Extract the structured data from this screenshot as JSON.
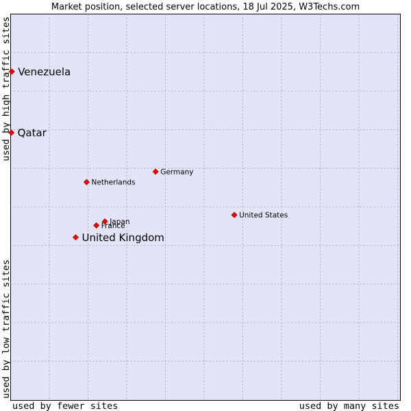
{
  "chart_data": {
    "type": "scatter",
    "title": "Market position, selected server locations, 18 Jul 2025, W3Techs.com",
    "xlabel_left": "used by fewer sites",
    "xlabel_right": "used by many sites",
    "ylabel_bottom": "used by low traffic sites",
    "ylabel_top": "used by high traffic sites",
    "xlim": [
      0,
      100
    ],
    "ylim": [
      0,
      100
    ],
    "grid": true,
    "colors": {
      "plot_bg": "#e4e4f8",
      "point": "#ee0000",
      "point_edge": "#aa0000",
      "frame": "#000000"
    },
    "points": [
      {
        "label": "Venezuela",
        "x": 0.3,
        "y": 85.1,
        "size": "large"
      },
      {
        "label": "Qatar",
        "x": 0.2,
        "y": 69.3,
        "size": "large"
      },
      {
        "label": "Germany",
        "x": 37.2,
        "y": 59.2,
        "size": "small"
      },
      {
        "label": "Netherlands",
        "x": 19.5,
        "y": 56.5,
        "size": "small"
      },
      {
        "label": "United States",
        "x": 57.4,
        "y": 48.0,
        "size": "small"
      },
      {
        "label": "Japan",
        "x": 24.2,
        "y": 46.3,
        "size": "small"
      },
      {
        "label": "France",
        "x": 22.0,
        "y": 45.3,
        "size": "small"
      },
      {
        "label": "United Kingdom",
        "x": 16.7,
        "y": 42.2,
        "size": "large"
      }
    ]
  }
}
